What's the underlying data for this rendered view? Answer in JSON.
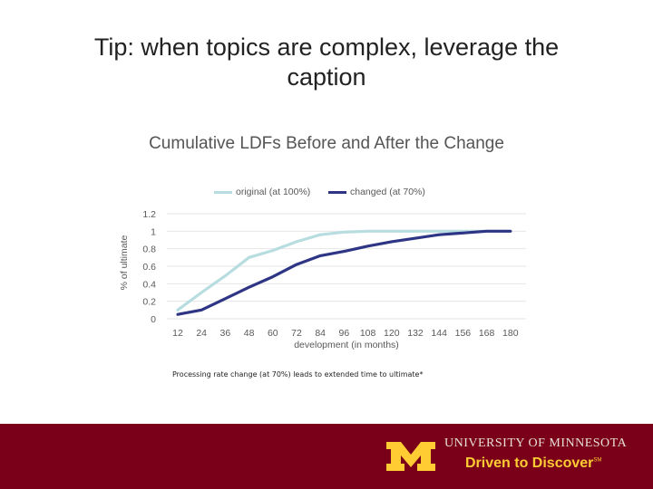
{
  "slide": {
    "title": "Tip: when topics are complex, leverage the caption",
    "caption": "Processing rate change (at 70%) leads to extended time to ultimate*"
  },
  "footer": {
    "brand": "University of Minnesota",
    "tagline": "Driven to Discover",
    "trademark": "SM",
    "background_color": "#7a0019",
    "accent_color": "#ffcc33"
  },
  "chart_data": {
    "type": "line",
    "title": "Cumulative LDFs Before and After the Change",
    "xlabel": "development (in months)",
    "ylabel": "% of ultimate",
    "x": [
      12,
      24,
      36,
      48,
      60,
      72,
      84,
      96,
      108,
      120,
      132,
      144,
      156,
      168,
      180
    ],
    "x_tick_labels": [
      "12",
      "24",
      "36",
      "48",
      "60",
      "72",
      "84",
      "96",
      "108",
      "120",
      "132",
      "144",
      "156",
      "168",
      "180"
    ],
    "y_tick_labels": [
      "0",
      "0.2",
      "0.4",
      "0.6",
      "0.8",
      "1",
      "1.2"
    ],
    "ylim": [
      0,
      1.2
    ],
    "grid": true,
    "legend_position": "top",
    "series": [
      {
        "name": "original (at 100%)",
        "color": "#b7dde0",
        "values": [
          0.1,
          0.3,
          0.49,
          0.7,
          0.78,
          0.88,
          0.96,
          0.99,
          1.0,
          1.0,
          1.0,
          1.0,
          1.0,
          1.0,
          1.0
        ]
      },
      {
        "name": "changed (at 70%)",
        "color": "#2e3584",
        "values": [
          0.05,
          0.1,
          0.23,
          0.36,
          0.48,
          0.62,
          0.72,
          0.77,
          0.83,
          0.88,
          0.92,
          0.96,
          0.98,
          1.0,
          1.0
        ]
      }
    ]
  }
}
